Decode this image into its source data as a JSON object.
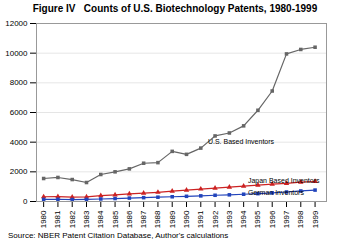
{
  "chart_data": {
    "type": "line",
    "title": "Figure IV   Counts of U.S. Biotechnology Patents, 1980-1999",
    "caption": "Source: NBER Patent Citation Database, Author's calculations",
    "x": [
      1980,
      1981,
      1982,
      1983,
      1984,
      1985,
      1986,
      1987,
      1988,
      1989,
      1990,
      1991,
      1992,
      1993,
      1994,
      1995,
      1996,
      1997,
      1998,
      1999
    ],
    "series": [
      {
        "name": "U.S. Based Inventors",
        "color": "#666666",
        "marker": "square",
        "values": [
          1550,
          1620,
          1480,
          1280,
          1820,
          2000,
          2200,
          2580,
          2620,
          3380,
          3180,
          3600,
          4420,
          4620,
          5100,
          6150,
          7450,
          9950,
          10250,
          10400
        ]
      },
      {
        "name": "Japan Based Inventors",
        "color": "#cc2222",
        "marker": "triangle",
        "values": [
          320,
          330,
          290,
          310,
          390,
          440,
          510,
          560,
          620,
          700,
          770,
          840,
          900,
          970,
          1040,
          1100,
          1170,
          1220,
          1300,
          1350
        ]
      },
      {
        "name": "German Inventors",
        "color": "#2244bb",
        "marker": "square",
        "values": [
          140,
          150,
          130,
          140,
          170,
          200,
          230,
          260,
          290,
          320,
          350,
          380,
          420,
          450,
          490,
          530,
          580,
          640,
          710,
          770
        ]
      }
    ],
    "annotations": [
      {
        "text": "U.S. Based Inventors",
        "x": 1991.5,
        "y": 4200
      },
      {
        "text": "Japan Based Inventors",
        "x": 1994.3,
        "y": 1230
      },
      {
        "text": "German Inventors",
        "x": 1994.3,
        "y": 780
      }
    ],
    "xlim": [
      1979.5,
      1999.8
    ],
    "xticks": [
      1980,
      1981,
      1982,
      1983,
      1984,
      1985,
      1986,
      1987,
      1988,
      1989,
      1990,
      1991,
      1992,
      1993,
      1994,
      1995,
      1996,
      1997,
      1998,
      1999
    ],
    "ylim": [
      0,
      12000
    ],
    "yticks": [
      0,
      2000,
      4000,
      6000,
      8000,
      10000,
      12000
    ],
    "grid": true
  }
}
